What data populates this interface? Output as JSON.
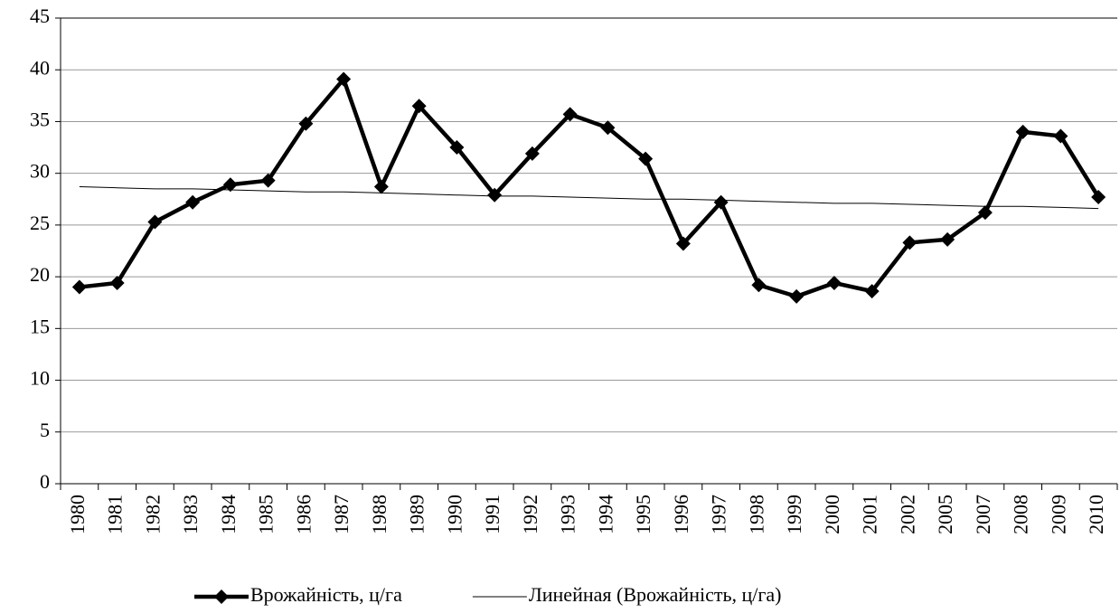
{
  "chart_data": {
    "type": "line",
    "categories": [
      "1980",
      "1981",
      "1982",
      "1983",
      "1984",
      "1985",
      "1986",
      "1987",
      "1988",
      "1989",
      "1990",
      "1991",
      "1992",
      "1993",
      "1994",
      "1995",
      "1996",
      "1997",
      "1998",
      "1999",
      "2000",
      "2001",
      "2002",
      "2005",
      "2007",
      "2008",
      "2009",
      "2010"
    ],
    "series": [
      {
        "name": "Врожайність, ц/га",
        "color": "#000000",
        "marker": "diamond",
        "values": [
          19.0,
          19.4,
          25.3,
          27.2,
          28.9,
          29.3,
          34.8,
          39.1,
          28.7,
          36.5,
          32.5,
          27.9,
          31.9,
          35.7,
          34.4,
          31.4,
          23.2,
          27.2,
          19.2,
          18.1,
          19.4,
          18.6,
          23.3,
          23.6,
          26.2,
          34.0,
          33.6,
          27.7
        ]
      },
      {
        "name": "Линейная (Врожайність, ц/га)",
        "color": "#000000",
        "marker": "none",
        "values": [
          28.7,
          28.6,
          28.5,
          28.5,
          28.4,
          28.3,
          28.2,
          28.2,
          28.1,
          28.0,
          27.9,
          27.8,
          27.8,
          27.7,
          27.6,
          27.5,
          27.5,
          27.4,
          27.3,
          27.2,
          27.1,
          27.1,
          27.0,
          26.9,
          26.8,
          26.8,
          26.7,
          26.6
        ]
      }
    ],
    "ylim": [
      0,
      45
    ],
    "yticks": [
      0,
      5,
      10,
      15,
      20,
      25,
      30,
      35,
      40,
      45
    ],
    "grid": true,
    "legend": "bottom"
  }
}
